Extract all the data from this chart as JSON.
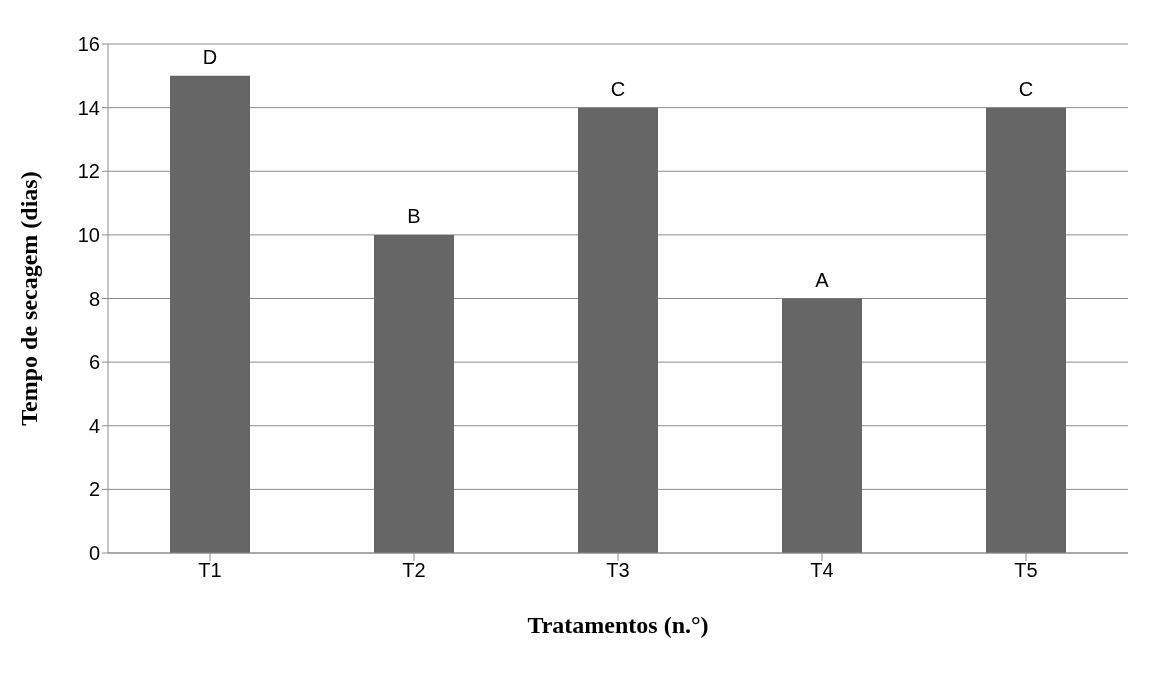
{
  "chart_data": {
    "type": "bar",
    "xlabel": "Tratamentos  (n.°)",
    "ylabel": "Tempo de secagem (dias)",
    "categories": [
      "T1",
      "T2",
      "T3",
      "T4",
      "T5"
    ],
    "values": [
      15,
      10,
      14,
      8,
      14
    ],
    "color": "#666666",
    "ylim": [
      0,
      16
    ],
    "yticks": [
      0,
      2,
      4,
      6,
      8,
      10,
      12,
      14,
      16
    ],
    "grid": "y",
    "annotations": [
      {
        "text": "D",
        "x": "T1",
        "y": 15
      },
      {
        "text": "B",
        "x": "T2",
        "y": 10
      },
      {
        "text": "C",
        "x": "T3",
        "y": 14
      },
      {
        "text": "A",
        "x": "T4",
        "y": 8
      },
      {
        "text": "C",
        "x": "T5",
        "y": 14
      }
    ]
  }
}
